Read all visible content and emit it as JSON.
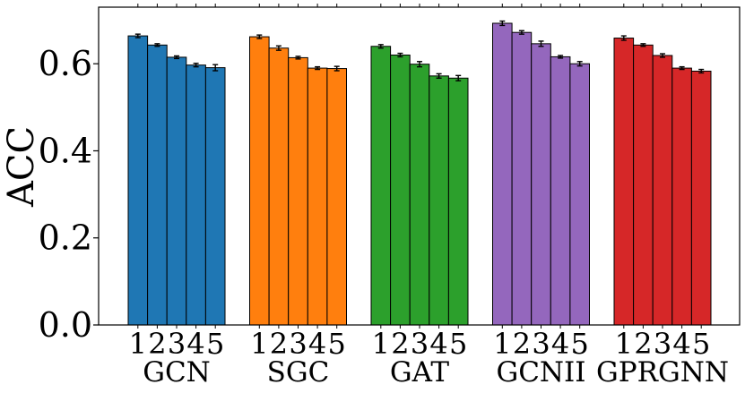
{
  "chart_data": {
    "type": "bar",
    "title": "",
    "xlabel": "",
    "ylabel": "ACC",
    "ylim": [
      0,
      0.73
    ],
    "yticks": [
      0.0,
      0.2,
      0.4,
      0.6
    ],
    "ytick_labels": [
      "0.0",
      "0.2",
      "0.4",
      "0.6"
    ],
    "bar_labels": [
      "1",
      "2",
      "3",
      "4",
      "5"
    ],
    "groups": [
      {
        "name": "GCN",
        "color": "#1f77b4",
        "values": [
          0.664,
          0.643,
          0.615,
          0.597,
          0.591
        ],
        "errors": [
          0.004,
          0.003,
          0.003,
          0.004,
          0.007
        ]
      },
      {
        "name": "SGC",
        "color": "#ff7f0e",
        "values": [
          0.662,
          0.636,
          0.614,
          0.59,
          0.589
        ],
        "errors": [
          0.004,
          0.005,
          0.003,
          0.003,
          0.005
        ]
      },
      {
        "name": "GAT",
        "color": "#2ca02c",
        "values": [
          0.64,
          0.62,
          0.599,
          0.572,
          0.567
        ],
        "errors": [
          0.004,
          0.004,
          0.006,
          0.005,
          0.006
        ]
      },
      {
        "name": "GCNII",
        "color": "#9467bd",
        "values": [
          0.693,
          0.672,
          0.646,
          0.616,
          0.6
        ],
        "errors": [
          0.005,
          0.004,
          0.006,
          0.003,
          0.005
        ]
      },
      {
        "name": "GPRGNN",
        "color": "#d62728",
        "values": [
          0.659,
          0.643,
          0.619,
          0.59,
          0.583
        ],
        "errors": [
          0.005,
          0.003,
          0.004,
          0.003,
          0.004
        ]
      }
    ]
  }
}
